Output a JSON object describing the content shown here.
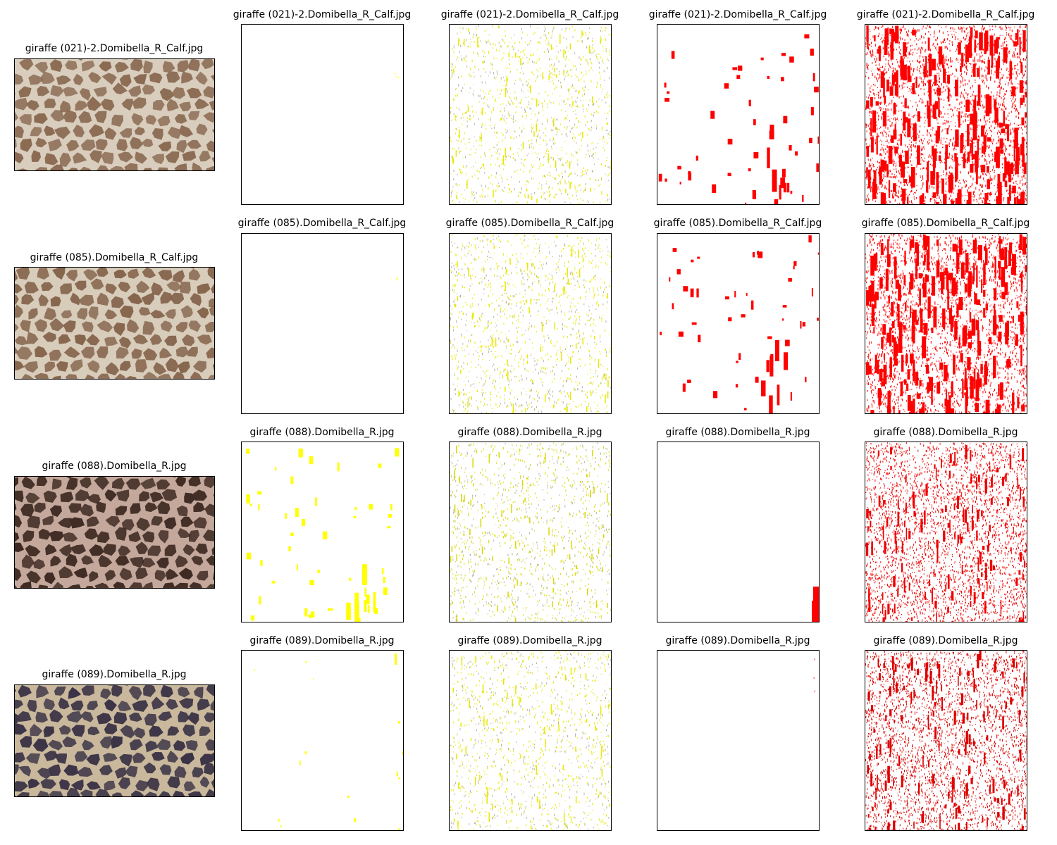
{
  "rows": [
    {
      "name": "giraffe (021)-2.Domibella_R_Calf.jpg",
      "thumbnail": {
        "style": "giraffe-reticulated-brown",
        "base": "#d9cdbd",
        "spots": "#8a6a52"
      },
      "panels": [
        {
          "label": "giraffe (021)-2.Domibella_R_Calf.jpg",
          "color": "#ffff00",
          "density": "empty"
        },
        {
          "label": "giraffe (021)-2.Domibella_R_Calf.jpg",
          "color": "#e8e800",
          "density": "speckle-light"
        },
        {
          "label": "giraffe (021)-2.Domibella_R_Calf.jpg",
          "color": "#ff0000",
          "density": "blobs-sparse"
        },
        {
          "label": "giraffe (021)-2.Domibella_R_Calf.jpg",
          "color": "#ff0000",
          "density": "streaks-dense"
        }
      ]
    },
    {
      "name": "giraffe (085).Domibella_R_Calf.jpg",
      "thumbnail": {
        "style": "giraffe-reticulated-brown",
        "base": "#d8ccbb",
        "spots": "#86654d"
      },
      "panels": [
        {
          "label": "giraffe (085).Domibella_R_Calf.jpg",
          "color": "#ffff00",
          "density": "empty"
        },
        {
          "label": "giraffe (085).Domibella_R_Calf.jpg",
          "color": "#e8e800",
          "density": "speckle-light"
        },
        {
          "label": "giraffe (085).Domibella_R_Calf.jpg",
          "color": "#ff0000",
          "density": "blobs-sparse"
        },
        {
          "label": "giraffe (085).Domibella_R_Calf.jpg",
          "color": "#ff0000",
          "density": "streaks-dense"
        }
      ]
    },
    {
      "name": "giraffe (088).Domibella_R.jpg",
      "thumbnail": {
        "style": "giraffe-reticulated-dark",
        "base": "#c4a89c",
        "spots": "#3e2a22"
      },
      "panels": [
        {
          "label": "giraffe (088).Domibella_R.jpg",
          "color": "#ffff00",
          "density": "blobs-sparse"
        },
        {
          "label": "giraffe (088).Domibella_R.jpg",
          "color": "#d8d800",
          "density": "speckle-light"
        },
        {
          "label": "giraffe (088).Domibella_R.jpg",
          "color": "#ff0000",
          "density": "corner-only"
        },
        {
          "label": "giraffe (088).Domibella_R.jpg",
          "color": "#ee0000",
          "density": "streaks-fine"
        }
      ]
    },
    {
      "name": "giraffe (089).Domibella_R.jpg",
      "thumbnail": {
        "style": "giraffe-reticulated-slate",
        "base": "#c9b89c",
        "spots": "#3b3446"
      },
      "panels": [
        {
          "label": "giraffe (089).Domibella_R.jpg",
          "color": "#ffff00",
          "density": "few-dots"
        },
        {
          "label": "giraffe (089).Domibella_R.jpg",
          "color": "#e8e800",
          "density": "speckle-light"
        },
        {
          "label": "giraffe (089).Domibella_R.jpg",
          "color": "#ff0000",
          "density": "empty"
        },
        {
          "label": "giraffe (089).Domibella_R.jpg",
          "color": "#dd0000",
          "density": "streaks-fine"
        }
      ]
    }
  ]
}
